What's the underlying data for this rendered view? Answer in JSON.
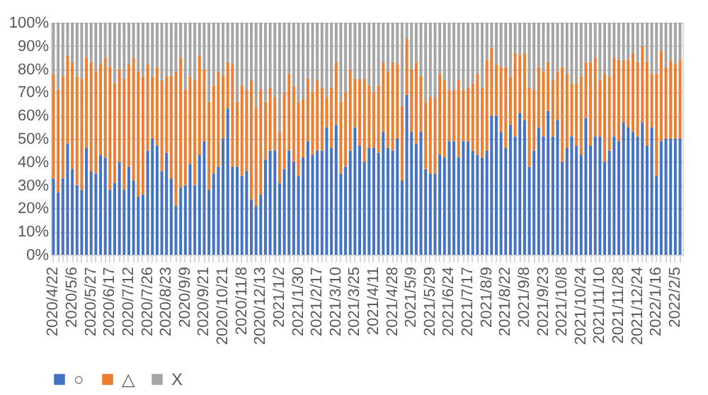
{
  "chart_data": {
    "type": "bar",
    "stacked": true,
    "legend": "bottom",
    "grid": "y",
    "categories": [
      "2020/4/22",
      null,
      null,
      null,
      "2020/5/6",
      null,
      null,
      null,
      "2020/5/27",
      null,
      null,
      null,
      "2020/6/17",
      null,
      null,
      null,
      "2020/7/12",
      null,
      null,
      null,
      "2020/7/26",
      null,
      null,
      null,
      "2020/8/23",
      null,
      null,
      null,
      "2020/9/9",
      null,
      null,
      null,
      "2020/9/21",
      null,
      null,
      null,
      "2020/10/21",
      null,
      null,
      null,
      "2020/11/8",
      null,
      null,
      null,
      "2020/12/13",
      null,
      null,
      null,
      "2021/1/2",
      null,
      null,
      null,
      "2021/1/30",
      null,
      null,
      null,
      "2021/2/17",
      null,
      null,
      null,
      "2021/3/10",
      null,
      null,
      null,
      "2021/3/25",
      null,
      null,
      null,
      "2021/4/11",
      null,
      null,
      null,
      "2021/4/28",
      null,
      null,
      null,
      "2021/5/9",
      null,
      null,
      null,
      "2021/5/29",
      null,
      null,
      null,
      "2021/6/24",
      null,
      null,
      null,
      "2021/7/17",
      null,
      null,
      null,
      "2021/8/9",
      null,
      null,
      null,
      "2021/8/22",
      null,
      null,
      null,
      "2021/9/8",
      null,
      null,
      null,
      "2021/9/23",
      null,
      null,
      null,
      "2021/10/8",
      null,
      null,
      null,
      "2021/10/24",
      null,
      null,
      null,
      "2021/11/10",
      null,
      null,
      null,
      "2021/11/28",
      null,
      null,
      null,
      "2021/12/24",
      null,
      null,
      null,
      "2022/1/16",
      null,
      null,
      null,
      "2022/2/5",
      null
    ],
    "ylim": [
      0,
      100
    ],
    "yticks": [
      {
        "value": 0,
        "label": "0%"
      },
      {
        "value": 10,
        "label": "10%"
      },
      {
        "value": 20,
        "label": "20%"
      },
      {
        "value": 30,
        "label": "30%"
      },
      {
        "value": 40,
        "label": "40%"
      },
      {
        "value": 50,
        "label": "50%"
      },
      {
        "value": 60,
        "label": "60%"
      },
      {
        "value": 70,
        "label": "70%"
      },
      {
        "value": 80,
        "label": "80%"
      },
      {
        "value": 90,
        "label": "90%"
      },
      {
        "value": 100,
        "label": "100%"
      }
    ],
    "series": [
      {
        "name": "○",
        "color": "#4472c4",
        "values": [
          33,
          27,
          33,
          48,
          37,
          30,
          28,
          46,
          36,
          35,
          43,
          42,
          28,
          31,
          40,
          28,
          38,
          32,
          25,
          26,
          45,
          50,
          47,
          36,
          44,
          33,
          21,
          29,
          30,
          39,
          30,
          43,
          49,
          28,
          35,
          38,
          50,
          63,
          38,
          38,
          34,
          36,
          24,
          21,
          26,
          41,
          45,
          45,
          31,
          37,
          45,
          40,
          34,
          42,
          49,
          43,
          45,
          45,
          55,
          46,
          56,
          35,
          38,
          45,
          55,
          47,
          40,
          46,
          46,
          44,
          53,
          46,
          45,
          50,
          32,
          69,
          53,
          48,
          53,
          37,
          35,
          35,
          43,
          42,
          49,
          49,
          42,
          49,
          49,
          45,
          43,
          42,
          45,
          60,
          60,
          53,
          46,
          56,
          51,
          61,
          58,
          38,
          45,
          55,
          51,
          62,
          51,
          58,
          40,
          46,
          51,
          47,
          43,
          59,
          47,
          51,
          51,
          40,
          45,
          51,
          49,
          57,
          55,
          53,
          51,
          57,
          47,
          55,
          34,
          49,
          50,
          50,
          50,
          50
        ]
      },
      {
        "name": "△",
        "color": "#ed7d31",
        "values": [
          45,
          44,
          44,
          38,
          46,
          47,
          48,
          39,
          47,
          44,
          39,
          43,
          53,
          43,
          40,
          48,
          44,
          53,
          54,
          51,
          37,
          27,
          34,
          39,
          33,
          44,
          58,
          56,
          41,
          38,
          45,
          43,
          31,
          38,
          38,
          41,
          27,
          20,
          44,
          28,
          39,
          35,
          51,
          42,
          45,
          25,
          27,
          23,
          22,
          33,
          33,
          33,
          32,
          25,
          27,
          27,
          30,
          27,
          13,
          26,
          27,
          31,
          32,
          35,
          21,
          28,
          36,
          27,
          24,
          29,
          30,
          33,
          38,
          32,
          32,
          24,
          27,
          35,
          24,
          29,
          33,
          33,
          35,
          33,
          22,
          22,
          33,
          22,
          23,
          29,
          35,
          30,
          39,
          29,
          22,
          28,
          35,
          21,
          36,
          25,
          29,
          34,
          26,
          26,
          28,
          21,
          24,
          21,
          41,
          32,
          23,
          27,
          34,
          24,
          36,
          34,
          24,
          38,
          32,
          34,
          35,
          27,
          29,
          34,
          32,
          33,
          36,
          23,
          44,
          39,
          31,
          34,
          32,
          34
        ]
      },
      {
        "name": "X",
        "color": "#a5a5a5",
        "values": [
          22,
          29,
          23,
          14,
          17,
          23,
          24,
          15,
          17,
          21,
          18,
          15,
          19,
          26,
          20,
          24,
          18,
          15,
          21,
          23,
          18,
          23,
          19,
          25,
          23,
          23,
          21,
          15,
          29,
          23,
          25,
          14,
          20,
          34,
          27,
          21,
          23,
          17,
          18,
          34,
          27,
          29,
          25,
          37,
          29,
          34,
          28,
          32,
          47,
          30,
          22,
          27,
          34,
          33,
          24,
          30,
          25,
          28,
          32,
          28,
          17,
          34,
          30,
          20,
          24,
          25,
          24,
          27,
          30,
          27,
          17,
          21,
          17,
          18,
          36,
          7,
          20,
          17,
          23,
          34,
          32,
          32,
          22,
          25,
          29,
          29,
          25,
          29,
          28,
          26,
          22,
          28,
          16,
          11,
          18,
          19,
          19,
          23,
          13,
          14,
          13,
          28,
          29,
          19,
          21,
          17,
          25,
          21,
          19,
          22,
          26,
          26,
          23,
          17,
          17,
          15,
          25,
          22,
          23,
          15,
          16,
          16,
          16,
          13,
          17,
          10,
          17,
          22,
          22,
          12,
          19,
          16,
          18,
          16
        ]
      }
    ]
  }
}
